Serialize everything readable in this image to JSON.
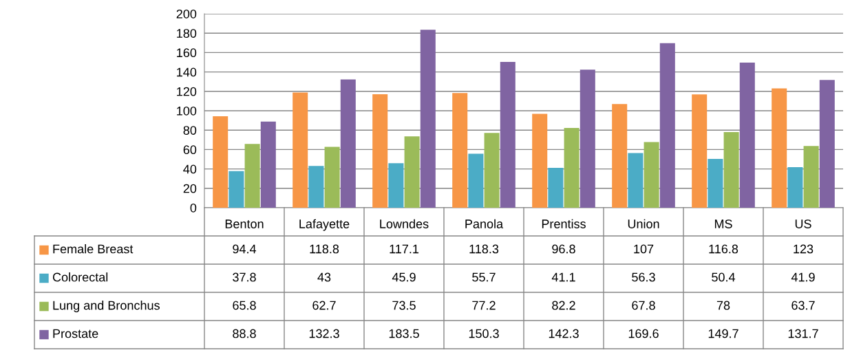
{
  "chart_data": {
    "type": "bar",
    "categories": [
      "Benton",
      "Lafayette",
      "Lowndes",
      "Panola",
      "Prentiss",
      "Union",
      "MS",
      "US"
    ],
    "series": [
      {
        "name": "Female Breast",
        "color": "#f79646",
        "values": [
          94.4,
          118.8,
          117.1,
          118.3,
          96.8,
          107,
          116.8,
          123
        ]
      },
      {
        "name": "Colorectal",
        "color": "#4bacc6",
        "values": [
          37.8,
          43,
          45.9,
          55.7,
          41.1,
          56.3,
          50.4,
          41.9
        ]
      },
      {
        "name": "Lung and Bronchus",
        "color": "#9bbb59",
        "values": [
          65.8,
          62.7,
          73.5,
          77.2,
          82.2,
          67.8,
          78,
          63.7
        ]
      },
      {
        "name": "Prostate",
        "color": "#8064a2",
        "values": [
          88.8,
          132.3,
          183.5,
          150.3,
          142.3,
          169.6,
          149.7,
          131.7
        ]
      }
    ],
    "ylim": [
      0,
      200
    ],
    "yticks": [
      0,
      20,
      40,
      60,
      80,
      100,
      120,
      140,
      160,
      180,
      200
    ],
    "grid": "y",
    "legend": "bottom left",
    "data_labels": true
  }
}
